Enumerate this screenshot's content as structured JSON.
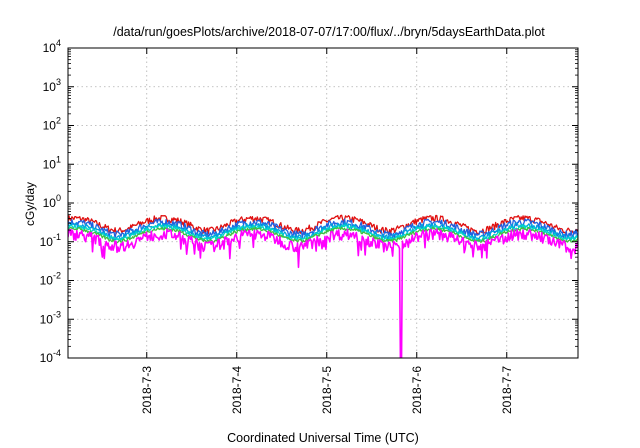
{
  "chart_data": {
    "type": "line",
    "title": "/data/run/goesPlots/archive/2018-07-07/17:00/flux/../bryn/5daysEarthData.plot",
    "xlabel": "Coordinated Universal Time (UTC)",
    "ylabel": "cGy/day",
    "y_scale": "log",
    "ylim": [
      0.0001,
      10000
    ],
    "y_ticks": [
      {
        "base": "10",
        "exp": "-4",
        "value": 0.0001
      },
      {
        "base": "10",
        "exp": "-3",
        "value": 0.001
      },
      {
        "base": "10",
        "exp": "-2",
        "value": 0.01
      },
      {
        "base": "10",
        "exp": "-1",
        "value": 0.1
      },
      {
        "base": "10",
        "exp": "0",
        "value": 1
      },
      {
        "base": "10",
        "exp": "1",
        "value": 10
      },
      {
        "base": "10",
        "exp": "2",
        "value": 100
      },
      {
        "base": "10",
        "exp": "3",
        "value": 1000
      },
      {
        "base": "10",
        "exp": "4",
        "value": 10000
      }
    ],
    "xlim": [
      "2018-07-02 03:00",
      "2018-07-07 19:00"
    ],
    "x_ticks": [
      "2018-7-3",
      "2018-7-4",
      "2018-7-5",
      "2018-7-6",
      "2018-7-7"
    ],
    "grid": true,
    "dropout": {
      "date": "2018-07-05 19:45",
      "min_value": 0.0001
    },
    "series": [
      {
        "color": "#e01010",
        "level": 0.3,
        "amplitude": 0.2
      },
      {
        "color": "#2060e0",
        "level": 0.24,
        "amplitude": 0.22
      },
      {
        "color": "#00a0e0",
        "level": 0.2,
        "amplitude": 0.16
      },
      {
        "color": "#00d8c8",
        "level": 0.18,
        "amplitude": 0.12
      },
      {
        "color": "#40c040",
        "level": 0.16,
        "amplitude": 0.1
      },
      {
        "color": "#ff00ff",
        "level": 0.12,
        "amplitude": 0.32
      }
    ]
  }
}
